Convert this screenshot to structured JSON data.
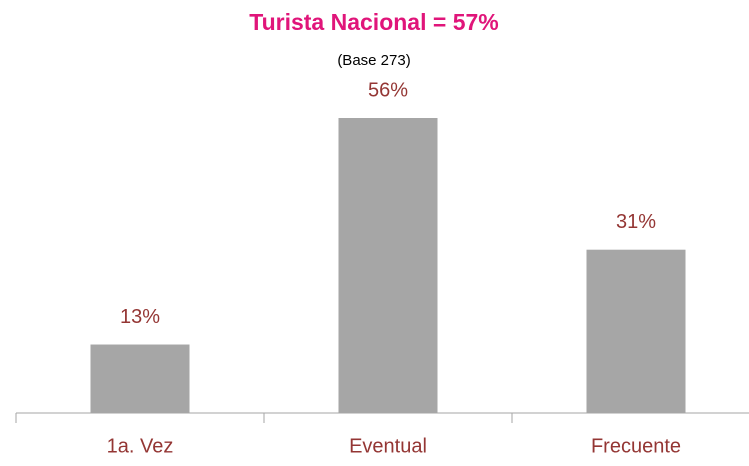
{
  "chart_data": {
    "type": "bar",
    "title": "Turista Nacional = 57%",
    "subtitle": "(Base 273)",
    "categories": [
      "1a. Vez",
      "Eventual",
      "Frecuente"
    ],
    "values": [
      13,
      56,
      31
    ],
    "value_labels": [
      "13%",
      "56%",
      "31%"
    ],
    "color": "#a6a6a6"
  }
}
